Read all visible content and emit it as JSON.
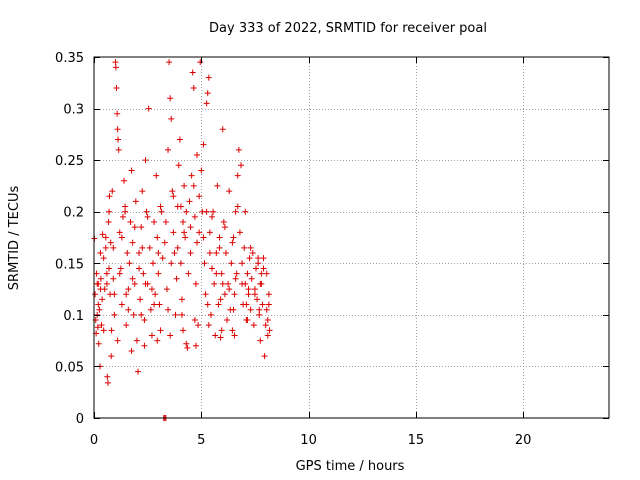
{
  "chart_data": {
    "type": "scatter",
    "title": "Day 333 of 2022, SRMTID for receiver poal",
    "xlabel": "GPS time / hours",
    "ylabel": "SRMTID / TECUs",
    "xlim": [
      0,
      24
    ],
    "ylim": [
      0,
      0.35
    ],
    "xticks": [
      0,
      5,
      10,
      15,
      20
    ],
    "yticks": [
      0,
      0.05,
      0.1,
      0.15,
      0.2,
      0.25,
      0.3,
      0.35
    ],
    "xtick_labels": [
      "0",
      "5",
      "10",
      "15",
      "20"
    ],
    "ytick_labels": [
      "0",
      "0.05",
      "0.1",
      "0.15",
      "0.2",
      "0.25",
      "0.3",
      "0.35"
    ],
    "grid": true,
    "marker": "+",
    "colors": {
      "series": "#dd0000",
      "grid": "#a0a0a0",
      "axis": "#000000"
    },
    "x_data_range": [
      0,
      8.2
    ],
    "series": [
      {
        "name": "SRMTID",
        "points": [
          [
            0.02,
            0.174
          ],
          [
            0.05,
            0.12
          ],
          [
            0.08,
            0.095
          ],
          [
            0.1,
            0.082
          ],
          [
            0.12,
            0.14
          ],
          [
            0.15,
            0.1
          ],
          [
            0.18,
            0.088
          ],
          [
            0.2,
            0.13
          ],
          [
            0.22,
            0.072
          ],
          [
            0.25,
            0.105
          ],
          [
            0.28,
            0.05
          ],
          [
            0.3,
            0.16
          ],
          [
            0.32,
            0.135
          ],
          [
            0.35,
            0.09
          ],
          [
            0.38,
            0.115
          ],
          [
            0.4,
            0.178
          ],
          [
            0.45,
            0.155
          ],
          [
            0.5,
            0.125
          ],
          [
            0.55,
            0.165
          ],
          [
            0.6,
            0.14
          ],
          [
            0.62,
            0.04
          ],
          [
            0.65,
            0.034
          ],
          [
            0.68,
            0.19
          ],
          [
            0.7,
            0.2
          ],
          [
            0.72,
            0.215
          ],
          [
            0.75,
            0.12
          ],
          [
            0.78,
            0.17
          ],
          [
            0.8,
            0.06
          ],
          [
            0.82,
            0.085
          ],
          [
            0.85,
            0.22
          ],
          [
            0.9,
            0.135
          ],
          [
            0.95,
            0.1
          ],
          [
            1.0,
            0.345
          ],
          [
            1.02,
            0.34
          ],
          [
            1.05,
            0.32
          ],
          [
            1.08,
            0.295
          ],
          [
            1.1,
            0.28
          ],
          [
            1.12,
            0.27
          ],
          [
            1.15,
            0.26
          ],
          [
            1.2,
            0.18
          ],
          [
            1.25,
            0.145
          ],
          [
            1.3,
            0.11
          ],
          [
            1.35,
            0.195
          ],
          [
            1.4,
            0.23
          ],
          [
            1.45,
            0.205
          ],
          [
            1.5,
            0.09
          ],
          [
            1.55,
            0.16
          ],
          [
            1.6,
            0.125
          ],
          [
            1.65,
            0.15
          ],
          [
            1.7,
            0.19
          ],
          [
            1.75,
            0.24
          ],
          [
            1.8,
            0.17
          ],
          [
            1.85,
            0.1
          ],
          [
            1.9,
            0.13
          ],
          [
            1.95,
            0.21
          ],
          [
            2.0,
            0.075
          ],
          [
            2.05,
            0.045
          ],
          [
            2.1,
            0.16
          ],
          [
            2.15,
            0.115
          ],
          [
            2.2,
            0.185
          ],
          [
            2.25,
            0.22
          ],
          [
            2.3,
            0.14
          ],
          [
            2.35,
            0.095
          ],
          [
            2.4,
            0.25
          ],
          [
            2.45,
            0.2
          ],
          [
            2.5,
            0.13
          ],
          [
            2.55,
            0.3
          ],
          [
            2.6,
            0.165
          ],
          [
            2.65,
            0.105
          ],
          [
            2.7,
            0.08
          ],
          [
            2.75,
            0.15
          ],
          [
            2.8,
            0.19
          ],
          [
            2.85,
            0.12
          ],
          [
            2.9,
            0.235
          ],
          [
            2.95,
            0.175
          ],
          [
            3.0,
            0.14
          ],
          [
            3.05,
            0.11
          ],
          [
            3.1,
            0.085
          ],
          [
            3.15,
            0.2
          ],
          [
            3.2,
            0.155
          ],
          [
            3.25,
            0.0
          ],
          [
            3.3,
            0.0
          ],
          [
            3.35,
            0.0
          ],
          [
            3.4,
            0.125
          ],
          [
            3.45,
            0.26
          ],
          [
            3.5,
            0.345
          ],
          [
            3.55,
            0.31
          ],
          [
            3.6,
            0.29
          ],
          [
            3.65,
            0.22
          ],
          [
            3.7,
            0.18
          ],
          [
            3.75,
            0.16
          ],
          [
            3.8,
            0.1
          ],
          [
            3.85,
            0.135
          ],
          [
            3.9,
            0.205
          ],
          [
            3.95,
            0.245
          ],
          [
            4.0,
            0.27
          ],
          [
            4.05,
            0.15
          ],
          [
            4.1,
            0.115
          ],
          [
            4.15,
            0.19
          ],
          [
            4.2,
            0.225
          ],
          [
            4.25,
            0.175
          ],
          [
            4.3,
            0.072
          ],
          [
            4.35,
            0.068
          ],
          [
            4.4,
            0.14
          ],
          [
            4.45,
            0.21
          ],
          [
            4.5,
            0.16
          ],
          [
            4.55,
            0.235
          ],
          [
            4.6,
            0.335
          ],
          [
            4.65,
            0.32
          ],
          [
            4.7,
            0.195
          ],
          [
            4.75,
            0.13
          ],
          [
            4.8,
            0.255
          ],
          [
            4.85,
            0.09
          ],
          [
            4.9,
            0.18
          ],
          [
            4.95,
            0.345
          ],
          [
            5.0,
            0.24
          ],
          [
            5.05,
            0.2
          ],
          [
            5.1,
            0.265
          ],
          [
            5.15,
            0.15
          ],
          [
            5.2,
            0.12
          ],
          [
            5.25,
            0.305
          ],
          [
            5.3,
            0.315
          ],
          [
            5.35,
            0.33
          ],
          [
            5.4,
            0.18
          ],
          [
            5.45,
            0.1
          ],
          [
            5.5,
            0.145
          ],
          [
            5.55,
            0.2
          ],
          [
            5.6,
            0.13
          ],
          [
            5.65,
            0.08
          ],
          [
            5.7,
            0.16
          ],
          [
            5.75,
            0.225
          ],
          [
            5.8,
            0.11
          ],
          [
            5.85,
            0.175
          ],
          [
            5.9,
            0.078
          ],
          [
            5.95,
            0.14
          ],
          [
            6.0,
            0.28
          ],
          [
            6.05,
            0.19
          ],
          [
            6.1,
            0.12
          ],
          [
            6.15,
            0.16
          ],
          [
            6.2,
            0.095
          ],
          [
            6.25,
            0.13
          ],
          [
            6.3,
            0.22
          ],
          [
            6.35,
            0.105
          ],
          [
            6.4,
            0.15
          ],
          [
            6.45,
            0.085
          ],
          [
            6.5,
            0.175
          ],
          [
            6.55,
            0.12
          ],
          [
            6.6,
            0.2
          ],
          [
            6.65,
            0.14
          ],
          [
            6.7,
            0.235
          ],
          [
            6.75,
            0.26
          ],
          [
            6.8,
            0.18
          ],
          [
            6.85,
            0.245
          ],
          [
            6.9,
            0.15
          ],
          [
            6.95,
            0.11
          ],
          [
            7.0,
            0.165
          ],
          [
            7.05,
            0.13
          ],
          [
            7.1,
            0.095
          ],
          [
            7.15,
            0.14
          ],
          [
            7.2,
            0.12
          ],
          [
            7.25,
            0.155
          ],
          [
            7.3,
            0.105
          ],
          [
            7.35,
            0.135
          ],
          [
            7.4,
            0.16
          ],
          [
            7.45,
            0.09
          ],
          [
            7.5,
            0.125
          ],
          [
            7.55,
            0.145
          ],
          [
            7.6,
            0.115
          ],
          [
            7.65,
            0.15
          ],
          [
            7.7,
            0.1
          ],
          [
            7.75,
            0.13
          ],
          [
            7.8,
            0.14
          ],
          [
            7.85,
            0.11
          ],
          [
            7.9,
            0.155
          ],
          [
            7.95,
            0.06
          ],
          [
            8.0,
            0.09
          ],
          [
            8.05,
            0.105
          ],
          [
            8.1,
            0.08
          ],
          [
            8.15,
            0.12
          ],
          [
            8.18,
            0.085
          ],
          [
            0.3,
            0.125
          ],
          [
            0.6,
            0.13
          ],
          [
            0.9,
            0.165
          ],
          [
            1.2,
            0.14
          ],
          [
            1.5,
            0.12
          ],
          [
            1.8,
            0.135
          ],
          [
            2.1,
            0.145
          ],
          [
            2.4,
            0.13
          ],
          [
            2.7,
            0.125
          ],
          [
            3.0,
            0.16
          ],
          [
            3.3,
            0.17
          ],
          [
            3.6,
            0.15
          ],
          [
            3.9,
            0.165
          ],
          [
            4.2,
            0.18
          ],
          [
            4.5,
            0.185
          ],
          [
            4.8,
            0.17
          ],
          [
            5.1,
            0.175
          ],
          [
            5.4,
            0.16
          ],
          [
            5.7,
            0.14
          ],
          [
            6.0,
            0.13
          ],
          [
            6.3,
            0.125
          ],
          [
            6.6,
            0.135
          ],
          [
            6.9,
            0.13
          ],
          [
            7.2,
            0.125
          ],
          [
            7.5,
            0.12
          ],
          [
            7.8,
            0.13
          ],
          [
            0.45,
            0.085
          ],
          [
            1.1,
            0.075
          ],
          [
            1.75,
            0.065
          ],
          [
            2.35,
            0.07
          ],
          [
            2.95,
            0.075
          ],
          [
            3.55,
            0.08
          ],
          [
            4.15,
            0.085
          ],
          [
            4.75,
            0.07
          ],
          [
            5.35,
            0.09
          ],
          [
            5.95,
            0.085
          ],
          [
            6.55,
            0.08
          ],
          [
            7.15,
            0.095
          ],
          [
            7.75,
            0.075
          ],
          [
            8.1,
            0.095
          ],
          [
            0.2,
            0.11
          ],
          [
            0.7,
            0.145
          ],
          [
            1.3,
            0.175
          ],
          [
            1.9,
            0.185
          ],
          [
            2.5,
            0.195
          ],
          [
            3.1,
            0.205
          ],
          [
            3.7,
            0.215
          ],
          [
            4.3,
            0.2
          ],
          [
            4.9,
            0.215
          ],
          [
            5.5,
            0.195
          ],
          [
            6.1,
            0.185
          ],
          [
            6.7,
            0.205
          ],
          [
            7.3,
            0.165
          ],
          [
            7.9,
            0.145
          ],
          [
            0.55,
            0.175
          ],
          [
            1.45,
            0.2
          ],
          [
            2.25,
            0.165
          ],
          [
            3.35,
            0.19
          ],
          [
            4.05,
            0.205
          ],
          [
            4.65,
            0.225
          ],
          [
            5.25,
            0.2
          ],
          [
            5.85,
            0.165
          ],
          [
            6.45,
            0.17
          ],
          [
            7.05,
            0.2
          ],
          [
            7.65,
            0.155
          ],
          [
            8.05,
            0.14
          ],
          [
            0.15,
            0.13
          ],
          [
            0.95,
            0.12
          ],
          [
            1.6,
            0.105
          ],
          [
            2.2,
            0.1
          ],
          [
            2.8,
            0.11
          ],
          [
            3.45,
            0.105
          ],
          [
            4.1,
            0.1
          ],
          [
            4.7,
            0.095
          ],
          [
            5.3,
            0.11
          ],
          [
            5.9,
            0.115
          ],
          [
            6.5,
            0.105
          ],
          [
            7.1,
            0.11
          ],
          [
            7.7,
            0.105
          ],
          [
            8.15,
            0.11
          ]
        ]
      }
    ]
  }
}
